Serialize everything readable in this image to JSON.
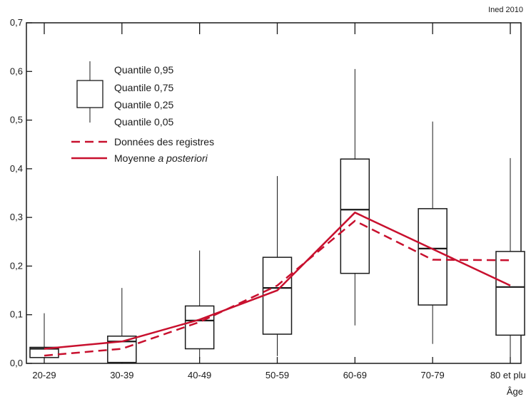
{
  "credit": "Ined 2010",
  "chart_data": {
    "type": "boxplot",
    "xlabel": "Âge",
    "ylabel": "",
    "ylim": [
      0,
      0.7
    ],
    "yticks": [
      "0,0",
      "0,1",
      "0,2",
      "0,3",
      "0,4",
      "0,5",
      "0,6",
      "0,7"
    ],
    "yticks_values": [
      0,
      0.1,
      0.2,
      0.3,
      0.4,
      0.5,
      0.6,
      0.7
    ],
    "grid": false,
    "categories": [
      "20-29",
      "30-39",
      "40-49",
      "50-59",
      "60-69",
      "70-79",
      "80 et plus"
    ],
    "boxes": [
      {
        "q05": 0.005,
        "q25": 0.012,
        "median": 0.03,
        "q75": 0.033,
        "q95": 0.103
      },
      {
        "q05": 0.002,
        "q25": 0.002,
        "median": 0.045,
        "q75": 0.056,
        "q95": 0.155
      },
      {
        "q05": 0.01,
        "q25": 0.03,
        "median": 0.088,
        "q75": 0.118,
        "q95": 0.232
      },
      {
        "q05": 0.015,
        "q25": 0.06,
        "median": 0.155,
        "q75": 0.218,
        "q95": 0.385
      },
      {
        "q05": 0.078,
        "q25": 0.185,
        "median": 0.316,
        "q75": 0.42,
        "q95": 0.605
      },
      {
        "q05": 0.04,
        "q25": 0.12,
        "median": 0.236,
        "q75": 0.318,
        "q95": 0.497
      },
      {
        "q05": 0.012,
        "q25": 0.058,
        "median": 0.157,
        "q75": 0.23,
        "q95": 0.422
      }
    ],
    "series": [
      {
        "name": "Données des registres",
        "style": "dashed",
        "color": "#c8102e",
        "values": [
          0.016,
          0.03,
          0.085,
          0.16,
          0.293,
          0.213,
          0.212
        ]
      },
      {
        "name": "Moyenne a posteriori",
        "style": "solid",
        "color": "#c8102e",
        "values": [
          0.03,
          0.045,
          0.09,
          0.15,
          0.31,
          0.235,
          0.16
        ]
      }
    ],
    "legend": {
      "position": "top-left",
      "quantile_labels": [
        "Quantile 0,95",
        "Quantile 0,75",
        "Quantile 0,25",
        "Quantile 0,05"
      ],
      "dashed_label": "Données des registres",
      "solid_label_prefix": "Moyenne ",
      "solid_label_italic": "a posteriori"
    }
  }
}
